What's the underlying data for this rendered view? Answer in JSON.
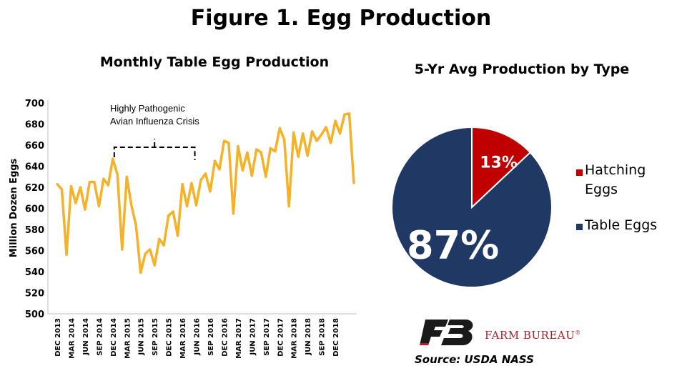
{
  "figure_title": "Figure 1. Egg Production",
  "source": "Source: USDA NASS",
  "brand": {
    "name": "FARM BUREAU",
    "reg_mark": "®",
    "color": "#b21e28"
  },
  "colors": {
    "line": "#f5b228",
    "table_eggs": "#1f3864",
    "hatching_eggs": "#c00000"
  },
  "chart_data": [
    {
      "type": "line",
      "title": "Monthly Table Egg Production",
      "ylabel": "Million Dozen Eggs",
      "xlabel": "",
      "ylim": [
        500,
        700
      ],
      "yticks": [
        500,
        520,
        540,
        560,
        580,
        600,
        620,
        640,
        660,
        680,
        700
      ],
      "grid": false,
      "x_tick_labels": [
        "DEC 2013",
        "MAR 2014",
        "JUN 2014",
        "SEP 2014",
        "DEC 2014",
        "MAR 2015",
        "JUN 2015",
        "SEP 2015",
        "DEC 2015",
        "MAR 2016",
        "JUN 2016",
        "SEP 2016",
        "DEC 2016",
        "MAR 2017",
        "JUN 2017",
        "SEP 2017",
        "DEC 2017",
        "MAR 2018",
        "JUN 2018",
        "SEP 2018",
        "DEC 2018"
      ],
      "series": [
        {
          "name": "",
          "values": [
            623,
            618,
            556,
            621,
            605,
            620,
            599,
            625,
            625,
            602,
            628,
            622,
            647,
            632,
            561,
            630,
            603,
            584,
            539,
            557,
            561,
            546,
            571,
            565,
            593,
            597,
            574,
            623,
            602,
            624,
            603,
            627,
            633,
            616,
            645,
            637,
            664,
            662,
            595,
            659,
            636,
            653,
            631,
            656,
            653,
            630,
            657,
            654,
            676,
            665,
            602,
            672,
            649,
            671,
            650,
            673,
            664,
            670,
            677,
            662,
            683,
            671,
            689,
            690,
            624
          ],
          "first_label": "DEC 2013",
          "frequency": "monthly"
        }
      ],
      "annotations": [
        {
          "text_line1": "Highly Pathogenic",
          "text_line2": "Avian Influenza Crisis",
          "from": "DEC 2014",
          "to": "JUN 2016",
          "level": 658
        }
      ]
    },
    {
      "type": "pie",
      "title": "5-Yr Avg Production by Type",
      "legend_position": "right",
      "slices": [
        {
          "label": "Hatching Eggs",
          "legend_line1": "Hatching",
          "legend_line2": "Eggs",
          "value": 13,
          "display": "13%",
          "color": "#c00000"
        },
        {
          "label": "Table Eggs",
          "value": 87,
          "display": "87%",
          "color": "#1f3864"
        }
      ]
    }
  ]
}
